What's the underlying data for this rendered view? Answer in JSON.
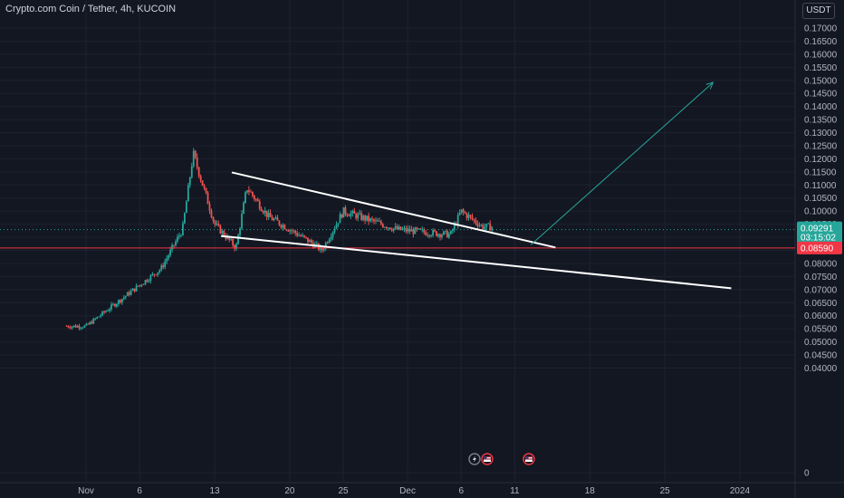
{
  "header": {
    "title": "Crypto.com Coin / Tether, 4h, KUCOIN",
    "currency": "USDT"
  },
  "colors": {
    "background": "#131722",
    "up": "#26a69a",
    "down": "#ef5350",
    "grid": "#1e2230",
    "trendline": "#ffffff",
    "support": "#f23645",
    "projection": "#26a69a"
  },
  "chart_data": {
    "type": "candlestick",
    "ylim": [
      0,
      0.1725
    ],
    "y_ticks": [
      "0",
      "0.04000",
      "0.04500",
      "0.05000",
      "0.05500",
      "0.06000",
      "0.06500",
      "0.07000",
      "0.07500",
      "0.08000",
      "0.08500",
      "0.09000",
      "0.09500",
      "0.10000",
      "0.10500",
      "0.11000",
      "0.11500",
      "0.12000",
      "0.12500",
      "0.13000",
      "0.13500",
      "0.14000",
      "0.14500",
      "0.15000",
      "0.15500",
      "0.16000",
      "0.16500",
      "0.17000"
    ],
    "y_tick_values": [
      0,
      0.04,
      0.045,
      0.05,
      0.055,
      0.06,
      0.065,
      0.07,
      0.075,
      0.08,
      0.085,
      0.09,
      0.095,
      0.1,
      0.105,
      0.11,
      0.115,
      0.12,
      0.125,
      0.13,
      0.135,
      0.14,
      0.145,
      0.15,
      0.155,
      0.16,
      0.165,
      0.17
    ],
    "x_ticks": [
      "Nov",
      "6",
      "13",
      "20",
      "25",
      "Dec",
      "6",
      "11",
      "18",
      "25",
      "2024"
    ],
    "x_tick_days": [
      1,
      6,
      13,
      20,
      25,
      31,
      36,
      41,
      48,
      55,
      62
    ],
    "last_price": {
      "value": 0.09291,
      "label": "0.09291",
      "countdown": "03:15:02"
    },
    "support_line": {
      "value": 0.0859,
      "label": "0.08590"
    },
    "key_points_day_price": [
      [
        1,
        0.056
      ],
      [
        8,
        0.078
      ],
      [
        10,
        0.093
      ],
      [
        11,
        0.122
      ],
      [
        13,
        0.095
      ],
      [
        15,
        0.086
      ],
      [
        16,
        0.109
      ],
      [
        18,
        0.098
      ],
      [
        22,
        0.088
      ],
      [
        23,
        0.085
      ],
      [
        25,
        0.1
      ],
      [
        30,
        0.093
      ],
      [
        35,
        0.091
      ],
      [
        36,
        0.1
      ],
      [
        38,
        0.094
      ]
    ],
    "trendlines": [
      {
        "name": "upper",
        "from": [
          14.6,
          0.1148
        ],
        "to": [
          44.8,
          0.0861
        ]
      },
      {
        "name": "lower",
        "from": [
          13.6,
          0.0905
        ],
        "to": [
          61.2,
          0.0705
        ]
      }
    ],
    "projection": {
      "from": [
        42.5,
        0.0871
      ],
      "to": [
        59.5,
        0.1492
      ]
    },
    "event_markers": [
      "flash",
      "flag-us",
      "flag-us"
    ]
  }
}
